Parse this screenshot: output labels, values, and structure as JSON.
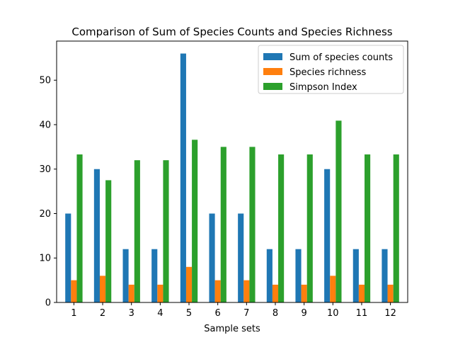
{
  "chart_data": {
    "type": "bar",
    "title": "Comparison of Sum of Species Counts and Species Richness",
    "xlabel": "Sample sets",
    "ylabel": "",
    "categories": [
      "1",
      "2",
      "3",
      "4",
      "5",
      "6",
      "7",
      "8",
      "9",
      "10",
      "11",
      "12"
    ],
    "ylim": [
      0,
      58.8
    ],
    "yticks": [
      0,
      10,
      20,
      30,
      40,
      50
    ],
    "grid": false,
    "legend_position": "top-right",
    "series": [
      {
        "name": "Sum of species counts",
        "color": "#1f77b4",
        "values": [
          20,
          30,
          12,
          12,
          56,
          20,
          20,
          12,
          12,
          30,
          12,
          12
        ]
      },
      {
        "name": "Species richness",
        "color": "#ff7f0e",
        "values": [
          5,
          6,
          4,
          4,
          8,
          5,
          5,
          4,
          4,
          6,
          4,
          4
        ]
      },
      {
        "name": "Simpson Index",
        "color": "#2ca02c",
        "values": [
          33.3,
          27.5,
          32.0,
          32.0,
          36.6,
          35.0,
          35.0,
          33.3,
          33.3,
          40.9,
          33.3,
          33.3
        ]
      }
    ]
  }
}
